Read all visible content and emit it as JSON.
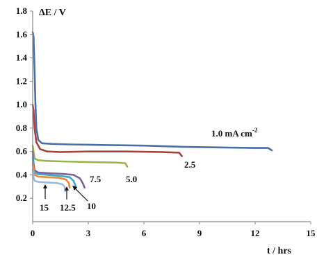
{
  "chart_data": {
    "type": "line",
    "ylabel": "ΔE / V",
    "xlabel": "t / hrs",
    "xlim": [
      0,
      15
    ],
    "ylim": [
      0,
      1.8
    ],
    "x_ticks": [
      "0",
      "3",
      "6",
      "9",
      "12",
      "15"
    ],
    "y_ticks": [
      "0.2",
      "0.4",
      "0.6",
      "0.8",
      "1.0",
      "1.2",
      "1.4",
      "1.6",
      "1.8"
    ],
    "grid": false,
    "legend": "none",
    "series": [
      {
        "name": "1.0  mA cm",
        "color": "#4a6fa5",
        "x": [
          0,
          0.05,
          0.1,
          0.15,
          0.2,
          0.3,
          0.5,
          1.0,
          2,
          4,
          6,
          8,
          10,
          12,
          12.7,
          12.9
        ],
        "y": [
          1.62,
          1.58,
          1.3,
          1.0,
          0.8,
          0.7,
          0.67,
          0.665,
          0.66,
          0.655,
          0.65,
          0.64,
          0.635,
          0.63,
          0.63,
          0.61
        ]
      },
      {
        "name": "2.5",
        "color": "#a8403e",
        "x": [
          0,
          0.05,
          0.1,
          0.2,
          0.4,
          0.8,
          1.5,
          3,
          5,
          7,
          7.9,
          8.05
        ],
        "y": [
          1.0,
          0.95,
          0.8,
          0.68,
          0.62,
          0.6,
          0.595,
          0.6,
          0.6,
          0.595,
          0.59,
          0.56
        ]
      },
      {
        "name": "5.0",
        "color": "#97b54a",
        "x": [
          0,
          0.05,
          0.1,
          0.3,
          0.7,
          1.5,
          3,
          4.5,
          5.0,
          5.1
        ],
        "y": [
          0.65,
          0.6,
          0.54,
          0.525,
          0.52,
          0.515,
          0.51,
          0.505,
          0.5,
          0.47
        ]
      },
      {
        "name": "7.5",
        "color": "#7c63a0",
        "x": [
          0,
          0.05,
          0.1,
          0.3,
          0.8,
          1.5,
          2.2,
          2.55,
          2.7,
          2.8
        ],
        "y": [
          0.6,
          0.5,
          0.44,
          0.42,
          0.415,
          0.41,
          0.4,
          0.37,
          0.33,
          0.29
        ]
      },
      {
        "name": "10",
        "color": "#3fa9c4",
        "x": [
          0,
          0.05,
          0.1,
          0.3,
          0.8,
          1.5,
          2.0,
          2.2,
          2.35
        ],
        "y": [
          0.55,
          0.46,
          0.42,
          0.405,
          0.4,
          0.39,
          0.38,
          0.35,
          0.29
        ]
      },
      {
        "name": "12.5",
        "color": "#e8893b",
        "x": [
          0,
          0.05,
          0.1,
          0.3,
          0.8,
          1.4,
          1.8,
          1.95,
          2.0
        ],
        "y": [
          0.5,
          0.44,
          0.4,
          0.385,
          0.38,
          0.375,
          0.36,
          0.33,
          0.29
        ]
      },
      {
        "name": "15",
        "color": "#9db9dd",
        "x": [
          0,
          0.05,
          0.1,
          0.3,
          0.8,
          1.3,
          1.6,
          1.72,
          1.75
        ],
        "y": [
          0.45,
          0.38,
          0.35,
          0.34,
          0.335,
          0.33,
          0.32,
          0.3,
          0.26
        ]
      }
    ],
    "annotations": {
      "s1": "1.0  mA cm",
      "s1_sup": "-2",
      "s2": "2.5",
      "s3": "5.0",
      "s4": "7.5",
      "s5": "10",
      "s6": "12.5",
      "s7": "15"
    }
  }
}
